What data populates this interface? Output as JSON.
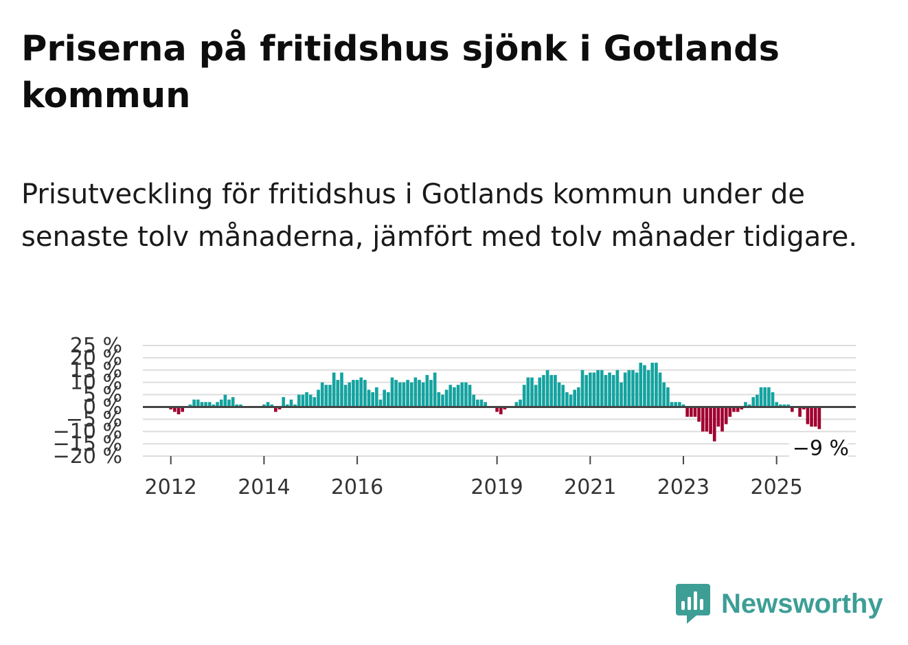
{
  "title": "Priserna på fritidshus sjönk i Gotlands kommun",
  "subtitle": "Prisutveckling för fritidshus i Gotlands kommun under de senaste tolv månaderna, jämfört med tolv månader tidigare.",
  "brand": {
    "name": "Newsworthy"
  },
  "colors": {
    "positive": "#14a3a0",
    "negative": "#a0002f",
    "grid": "#dddddd",
    "zero_line": "#444444",
    "brand": "#3d9e96"
  },
  "chart_data": {
    "type": "bar",
    "title": "Prisutveckling för fritidshus i Gotlands kommun",
    "xlabel": "",
    "ylabel": "",
    "ylim": [
      -20,
      25
    ],
    "y_ticks": [
      25,
      20,
      15,
      10,
      5,
      0,
      -5,
      -10,
      -15,
      -20
    ],
    "y_tick_labels": [
      "25 %",
      "20 %",
      "15 %",
      "10 %",
      "5 %",
      "0 %",
      "−5 %",
      "−10 %",
      "−15 %",
      "−20 %"
    ],
    "x_range": [
      2011.4,
      2026.7
    ],
    "x_ticks": [
      2012,
      2014,
      2016,
      2019,
      2021,
      2023,
      2025
    ],
    "x_tick_labels": [
      "2012",
      "2014",
      "2016",
      "2019",
      "2021",
      "2023",
      "2025"
    ],
    "last_value_label": "−9 %",
    "series": [
      {
        "name": "Prisutveckling",
        "start": "2011-01",
        "frequency": "monthly",
        "values": [
          0,
          0,
          0,
          0,
          0,
          0,
          0,
          0,
          0,
          0,
          0,
          0,
          -1,
          -2,
          -3,
          -2,
          0,
          1,
          3,
          3,
          2,
          2,
          2,
          1,
          2,
          3,
          5,
          3,
          4,
          1,
          1,
          0,
          0,
          0,
          0,
          0,
          1,
          2,
          1,
          -2,
          -1,
          4,
          1,
          3,
          1,
          5,
          5,
          6,
          5,
          4,
          7,
          10,
          9,
          9,
          14,
          11,
          14,
          9,
          10,
          11,
          11,
          12,
          11,
          7,
          6,
          8,
          3,
          7,
          6,
          12,
          11,
          10,
          10,
          11,
          10,
          12,
          11,
          10,
          13,
          11,
          14,
          6,
          5,
          7,
          9,
          8,
          9,
          10,
          10,
          9,
          5,
          3,
          3,
          2,
          0,
          0,
          -2,
          -3,
          -1,
          0,
          0,
          2,
          3,
          9,
          12,
          12,
          9,
          12,
          13,
          15,
          13,
          13,
          10,
          9,
          6,
          5,
          7,
          8,
          15,
          13,
          14,
          14,
          15,
          15,
          13,
          14,
          13,
          15,
          10,
          14,
          15,
          15,
          14,
          18,
          17,
          15,
          18,
          18,
          14,
          10,
          8,
          2,
          2,
          2,
          1,
          -4,
          -4,
          -4,
          -6,
          -10,
          -10,
          -11,
          -14,
          -8,
          -10,
          -7,
          -4,
          -2,
          -2,
          -1,
          2,
          1,
          4,
          5,
          8,
          8,
          8,
          6,
          2,
          1,
          1,
          1,
          -2,
          0,
          -4,
          -1,
          -7,
          -8,
          -8,
          -9
        ]
      }
    ]
  }
}
